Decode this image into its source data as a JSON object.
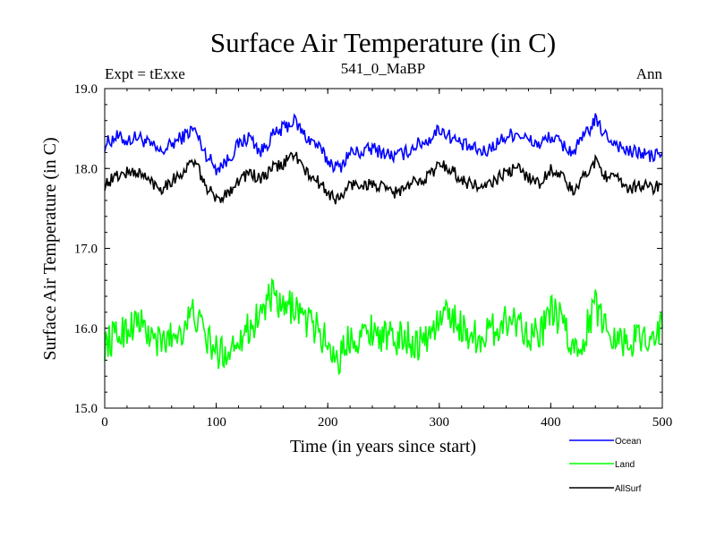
{
  "chart_data": {
    "type": "line",
    "title": "Surface Air Temperature (in C)",
    "subtitle": "541_0_MaBP",
    "left_label": "Expt = tExxe",
    "right_label": "Ann",
    "xlabel": "Time (in years since start)",
    "ylabel": "Surface Air Temperature (in C)",
    "xlim": [
      0,
      500
    ],
    "ylim": [
      15.0,
      19.0
    ],
    "x_ticks": [
      0,
      100,
      200,
      300,
      400,
      500
    ],
    "y_ticks": [
      15.0,
      16.0,
      17.0,
      18.0,
      19.0
    ],
    "x_tick_labels": [
      "0",
      "100",
      "200",
      "300",
      "400",
      "500"
    ],
    "y_tick_labels": [
      "15.0",
      "16.0",
      "17.0",
      "18.0",
      "19.0"
    ],
    "legend_position": "bottom-right, below plot",
    "series": [
      {
        "name": "Ocean",
        "color": "#0000ff",
        "x": [
          0,
          10,
          20,
          30,
          40,
          50,
          60,
          70,
          80,
          90,
          100,
          110,
          120,
          130,
          140,
          150,
          160,
          170,
          180,
          190,
          200,
          210,
          220,
          230,
          240,
          250,
          260,
          270,
          280,
          290,
          300,
          310,
          320,
          330,
          340,
          350,
          360,
          370,
          380,
          390,
          400,
          410,
          420,
          430,
          440,
          450,
          460,
          470,
          480,
          490,
          500
        ],
        "values": [
          18.3,
          18.4,
          18.35,
          18.4,
          18.3,
          18.2,
          18.3,
          18.4,
          18.5,
          18.2,
          18.0,
          18.1,
          18.3,
          18.4,
          18.2,
          18.4,
          18.5,
          18.6,
          18.4,
          18.3,
          18.1,
          18.0,
          18.2,
          18.2,
          18.25,
          18.2,
          18.15,
          18.2,
          18.3,
          18.35,
          18.5,
          18.4,
          18.3,
          18.25,
          18.2,
          18.3,
          18.4,
          18.45,
          18.35,
          18.3,
          18.4,
          18.3,
          18.2,
          18.4,
          18.6,
          18.4,
          18.3,
          18.2,
          18.2,
          18.15,
          18.2
        ]
      },
      {
        "name": "Land",
        "color": "#00ff00",
        "x": [
          0,
          10,
          20,
          30,
          40,
          50,
          60,
          70,
          80,
          90,
          100,
          110,
          120,
          130,
          140,
          150,
          160,
          170,
          180,
          190,
          200,
          210,
          220,
          230,
          240,
          250,
          260,
          270,
          280,
          290,
          300,
          310,
          320,
          330,
          340,
          350,
          360,
          370,
          380,
          390,
          400,
          410,
          420,
          430,
          440,
          450,
          460,
          470,
          480,
          490,
          500
        ],
        "values": [
          15.8,
          15.9,
          16.0,
          16.1,
          15.9,
          15.8,
          15.9,
          16.0,
          16.2,
          15.9,
          15.7,
          15.7,
          15.9,
          16.0,
          16.2,
          16.4,
          16.2,
          16.3,
          16.1,
          16.0,
          15.8,
          15.6,
          15.9,
          15.9,
          16.0,
          15.9,
          15.85,
          15.9,
          15.8,
          15.9,
          16.1,
          16.2,
          16.0,
          15.9,
          15.9,
          16.0,
          16.1,
          16.1,
          15.95,
          15.9,
          16.2,
          16.1,
          15.7,
          15.9,
          16.3,
          16.0,
          15.9,
          15.8,
          15.9,
          15.9,
          16.0
        ]
      },
      {
        "name": "AllSurf",
        "color": "#000000",
        "x": [
          0,
          10,
          20,
          30,
          40,
          50,
          60,
          70,
          80,
          90,
          100,
          110,
          120,
          130,
          140,
          150,
          160,
          170,
          180,
          190,
          200,
          210,
          220,
          230,
          240,
          250,
          260,
          270,
          280,
          290,
          300,
          310,
          320,
          330,
          340,
          350,
          360,
          370,
          380,
          390,
          400,
          410,
          420,
          430,
          440,
          450,
          460,
          470,
          480,
          490,
          500
        ],
        "values": [
          17.8,
          17.9,
          17.95,
          17.95,
          17.85,
          17.75,
          17.85,
          17.95,
          18.1,
          17.8,
          17.6,
          17.7,
          17.85,
          17.95,
          17.85,
          18.0,
          18.05,
          18.2,
          17.95,
          17.85,
          17.7,
          17.6,
          17.8,
          17.8,
          17.8,
          17.75,
          17.7,
          17.75,
          17.85,
          17.9,
          18.05,
          18.0,
          17.85,
          17.8,
          17.75,
          17.85,
          17.95,
          18.0,
          17.9,
          17.8,
          18.0,
          17.9,
          17.7,
          17.9,
          18.1,
          17.9,
          17.85,
          17.75,
          17.8,
          17.75,
          17.8
        ]
      }
    ]
  }
}
